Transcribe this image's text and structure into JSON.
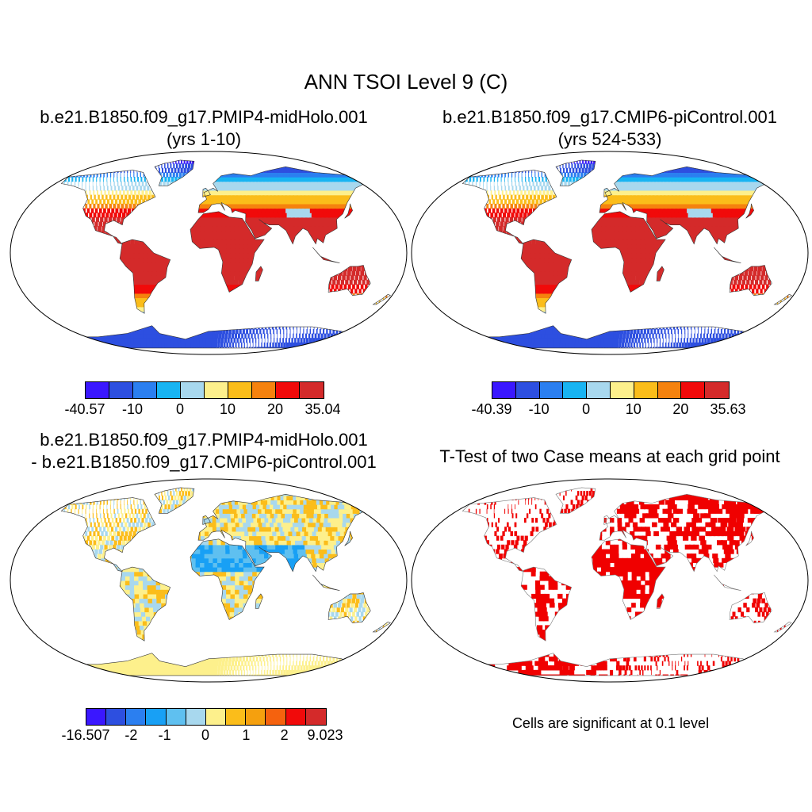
{
  "figure": {
    "main_title": "ANN TSOI Level 9 (C)"
  },
  "panels": {
    "case1": {
      "title_line1": "b.e21.B1850.f09_g17.PMIP4-midHolo.001",
      "title_line2": "(yrs 1-10)",
      "colorbar": {
        "colors": [
          "#3a17ff",
          "#2d4fe0",
          "#2b7ff0",
          "#18b4f2",
          "#a8d8ee",
          "#fdf08c",
          "#fbbd1a",
          "#f5820e",
          "#f10a0a",
          "#d42a2a"
        ],
        "labels": [
          "-40.57",
          "-10",
          "0",
          "10",
          "20",
          "35.04"
        ]
      }
    },
    "case2": {
      "title_line1": "b.e21.B1850.f09_g17.CMIP6-piControl.001",
      "title_line2": "(yrs 524-533)",
      "colorbar": {
        "colors": [
          "#3a17ff",
          "#2d4fe0",
          "#2b7ff0",
          "#18b4f2",
          "#a8d8ee",
          "#fdf08c",
          "#fbbd1a",
          "#f5820e",
          "#f10a0a",
          "#d42a2a"
        ],
        "labels": [
          "-40.39",
          "-10",
          "0",
          "10",
          "20",
          "35.63"
        ]
      }
    },
    "diff": {
      "title_line1": "b.e21.B1850.f09_g17.PMIP4-midHolo.001",
      "title_line2": "- b.e21.B1850.f09_g17.CMIP6-piControl.001",
      "colorbar": {
        "colors": [
          "#3a17ff",
          "#2d4fe0",
          "#2b7ff0",
          "#18a0f5",
          "#5fc0f0",
          "#a8d8ee",
          "#fdf08c",
          "#fbbd1a",
          "#f5a00e",
          "#f5620e",
          "#f10a0a",
          "#d42a2a"
        ],
        "labels": [
          "-16.507",
          "-2",
          "-1",
          "0",
          "1",
          "2",
          "9.023"
        ]
      }
    },
    "ttest": {
      "title": "T-Test of two Case means at each grid point",
      "note": "Cells are significant at 0.1 level",
      "significant_color": "#f00000"
    }
  }
}
